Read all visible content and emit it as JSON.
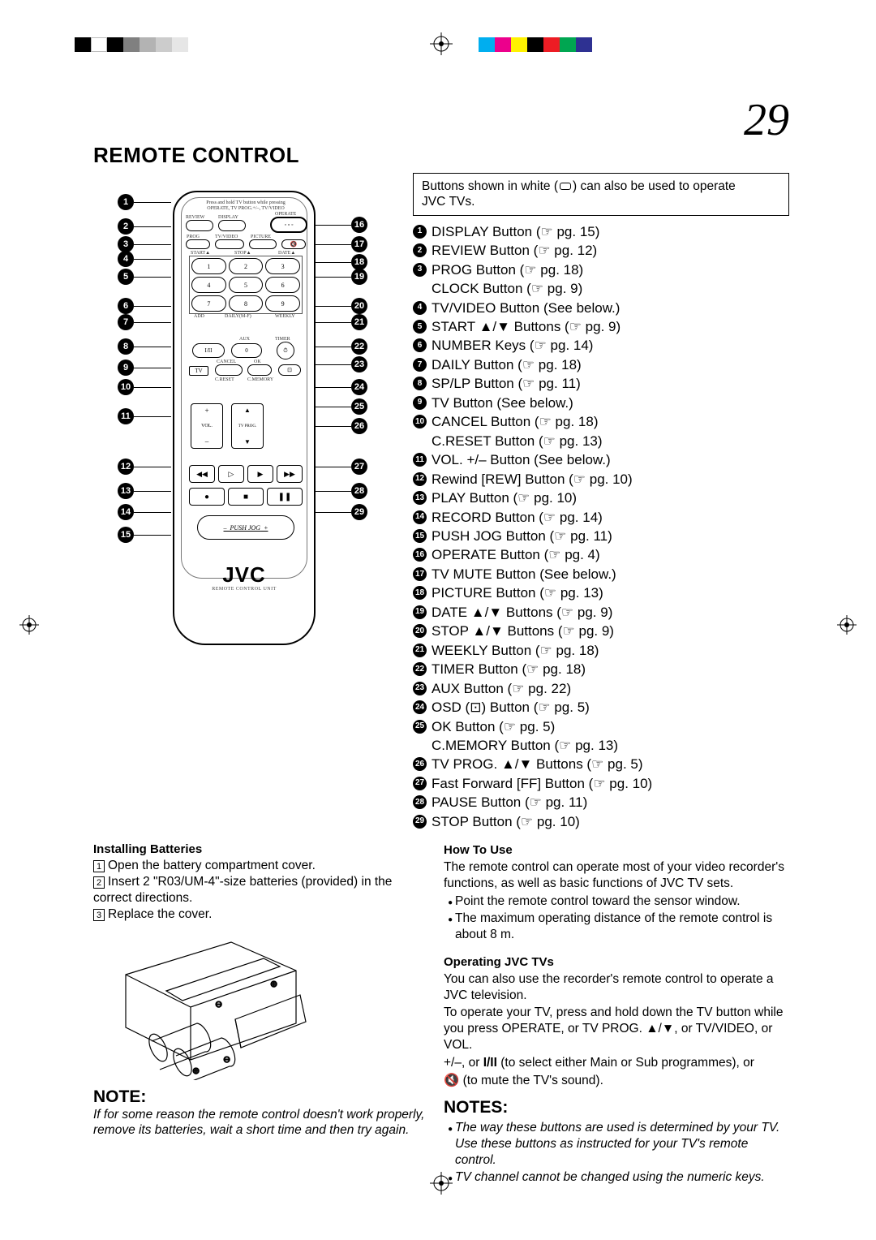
{
  "page_number": "29",
  "section_title": "REMOTE CONTROL",
  "colors": {
    "text": "#000000",
    "background": "#ffffff",
    "reg_left": [
      "#000000",
      "#ffffff",
      "#000000",
      "#808080",
      "#b3b3b3",
      "#cccccc",
      "#e6e6e6"
    ],
    "reg_right": [
      "#00aeef",
      "#ec008c",
      "#fff200",
      "#000000",
      "#ed1c24",
      "#00a651",
      "#2e3192"
    ]
  },
  "note_box": "Buttons shown in white (▭) can also be used to operate JVC TVs.",
  "brand": "JVC",
  "brand_sub": "REMOTE CONTROL UNIT",
  "jog_label": "PUSH JOG",
  "buttons": [
    {
      "n": 1,
      "label": "DISPLAY Button",
      "pg": "15"
    },
    {
      "n": 2,
      "label": "REVIEW Button",
      "pg": "12"
    },
    {
      "n": 3,
      "label": "PROG Button",
      "pg": "18"
    },
    {
      "n": 0,
      "label": "CLOCK Button",
      "pg": "9"
    },
    {
      "n": 4,
      "label": "TV/VIDEO Button (See below.)"
    },
    {
      "n": 5,
      "label": "START ▲/▼ Buttons",
      "pg": "9"
    },
    {
      "n": 6,
      "label": "NUMBER Keys",
      "pg": "14"
    },
    {
      "n": 7,
      "label": "DAILY Button",
      "pg": "18"
    },
    {
      "n": 8,
      "label": "SP/LP Button",
      "pg": "11"
    },
    {
      "n": 9,
      "label": "TV Button (See below.)"
    },
    {
      "n": 10,
      "label": "CANCEL Button",
      "pg": "18"
    },
    {
      "n": 0,
      "label": "C.RESET Button",
      "pg": "13"
    },
    {
      "n": 11,
      "label": "VOL. +/– Button (See below.)"
    },
    {
      "n": 12,
      "label": "Rewind [REW] Button",
      "pg": "10"
    },
    {
      "n": 13,
      "label": "PLAY Button",
      "pg": "10"
    },
    {
      "n": 14,
      "label": "RECORD Button",
      "pg": "14"
    },
    {
      "n": 15,
      "label": "PUSH JOG Button",
      "pg": "11"
    },
    {
      "n": 16,
      "label": "OPERATE Button",
      "pg": "4"
    },
    {
      "n": 17,
      "label": "TV MUTE Button (See below.)"
    },
    {
      "n": 18,
      "label": "PICTURE Button",
      "pg": "13"
    },
    {
      "n": 19,
      "label": "DATE ▲/▼ Buttons",
      "pg": "9"
    },
    {
      "n": 20,
      "label": "STOP ▲/▼ Buttons",
      "pg": "9"
    },
    {
      "n": 21,
      "label": "WEEKLY Button",
      "pg": "18"
    },
    {
      "n": 22,
      "label": "TIMER Button",
      "pg": "18"
    },
    {
      "n": 23,
      "label": "AUX Button",
      "pg": "22"
    },
    {
      "n": 24,
      "label": "OSD (⊡) Button",
      "pg": "5"
    },
    {
      "n": 25,
      "label": "OK Button",
      "pg": "5"
    },
    {
      "n": 0,
      "label": "C.MEMORY Button",
      "pg": "13"
    },
    {
      "n": 26,
      "label": "TV PROG. ▲/▼ Buttons",
      "pg": "5"
    },
    {
      "n": 27,
      "label": "Fast Forward [FF] Button",
      "pg": "10"
    },
    {
      "n": 28,
      "label": "PAUSE Button",
      "pg": "11"
    },
    {
      "n": 29,
      "label": "STOP Button",
      "pg": "10"
    }
  ],
  "left_callouts": [
    1,
    2,
    3,
    4,
    5,
    6,
    7,
    8,
    9,
    10,
    11,
    12,
    13,
    14,
    15
  ],
  "right_callouts": [
    16,
    17,
    18,
    19,
    20,
    21,
    22,
    23,
    24,
    25,
    26,
    27,
    28,
    29
  ],
  "installing": {
    "title": "Installing Batteries",
    "steps": [
      "Open the battery compartment cover.",
      "Insert 2 \"R03/UM-4\"-size batteries (provided) in the correct directions.",
      "Replace the cover."
    ]
  },
  "note_left": {
    "title": "NOTE:",
    "body": "If for some reason the remote control doesn't work properly, remove its batteries, wait a short time and then try again."
  },
  "how_to_use": {
    "title": "How To Use",
    "intro": "The remote control can operate most of your video recorder's functions, as well as basic functions of JVC TV sets.",
    "bullets": [
      "Point the remote control toward the sensor window.",
      "The maximum operating distance of the remote control is about 8 m."
    ]
  },
  "operating": {
    "title": "Operating JVC TVs",
    "p1": "You can also use the recorder's remote control to operate a JVC television.",
    "p2": "To operate your TV, press and hold down the TV button while you press OPERATE, or TV PROG. ▲/▼, or TV/VIDEO, or VOL.",
    "p3_pre": "+/–, or ",
    "p3_mid": " (to select either Main or Sub programmes), or",
    "p4_post": " (to mute the TV's sound)."
  },
  "notes_right": {
    "title": "NOTES:",
    "items": [
      "The way these buttons are used is determined by your TV. Use these buttons as instructed for your TV's remote control.",
      "TV channel cannot be changed using the numeric keys."
    ]
  }
}
